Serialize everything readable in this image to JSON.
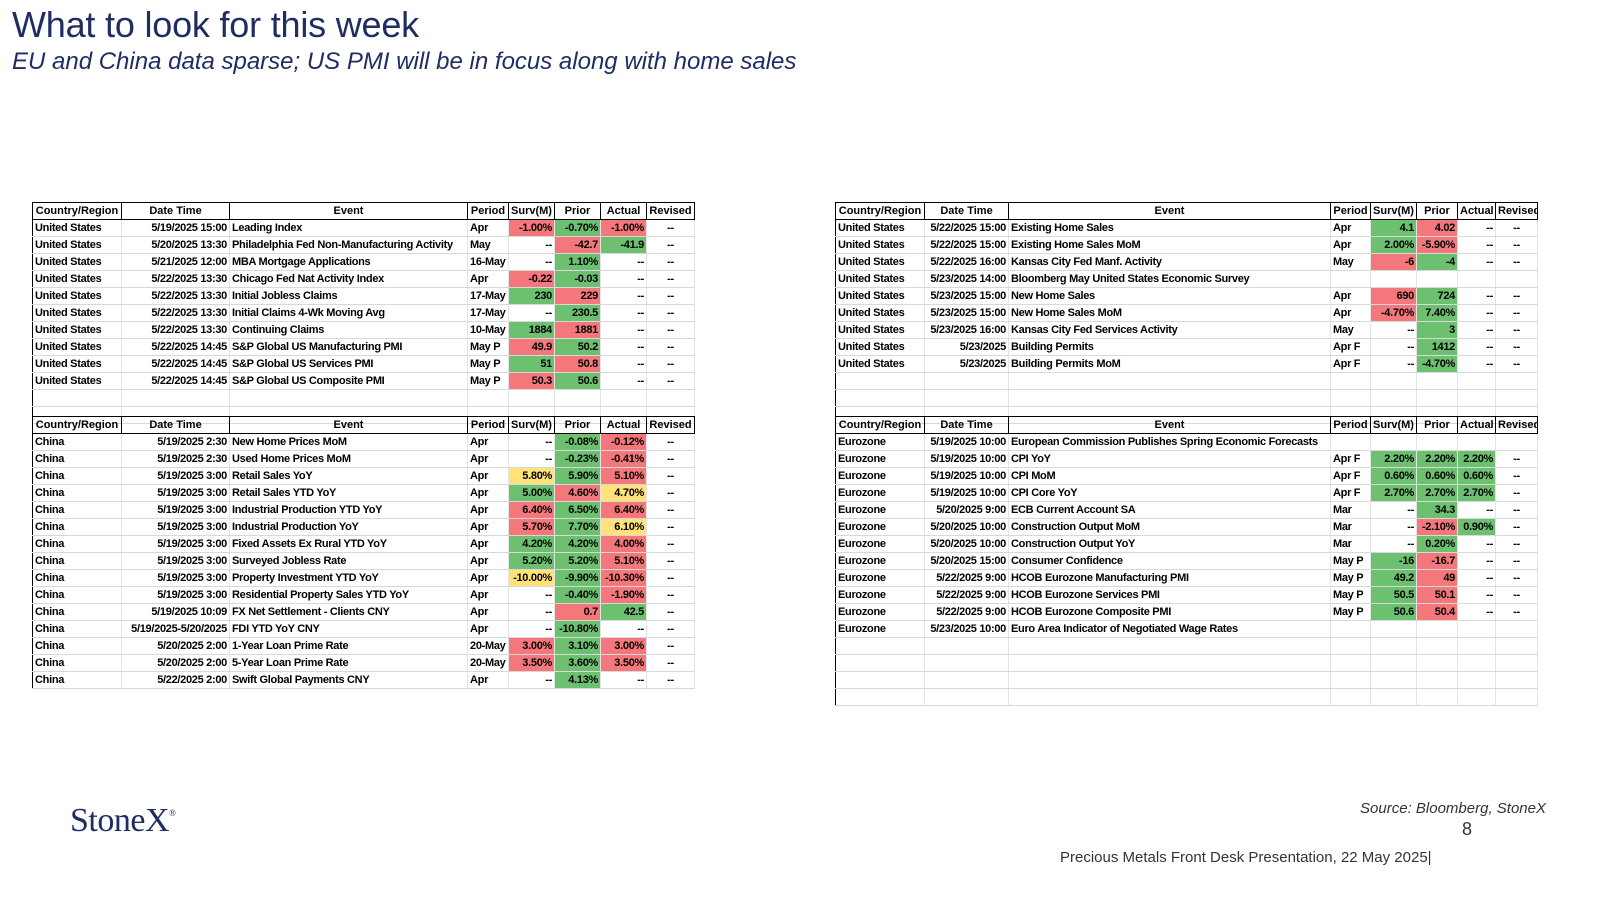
{
  "title": "What to look for this week",
  "subtitle": "EU and China data sparse; US PMI will be in focus along with home sales",
  "headers": [
    "Country/Region",
    "Date Time",
    "Event",
    "Period",
    "Surv(M)",
    "Prior",
    "Actual",
    "Revised"
  ],
  "tables": [
    {
      "rows": [
        [
          "United States",
          "5/19/2025 15:00",
          "Leading Index",
          "Apr",
          "-1.00%",
          "-0.70%",
          "-1.00%",
          "--"
        ],
        [
          "United States",
          "5/20/2025 13:30",
          "Philadelphia Fed Non-Manufacturing Activity",
          "May",
          "--",
          "-42.7",
          "-41.9",
          "--"
        ],
        [
          "United States",
          "5/21/2025 12:00",
          "MBA Mortgage Applications",
          "16-May",
          "--",
          "1.10%",
          "--",
          "--"
        ],
        [
          "United States",
          "5/22/2025 13:30",
          "Chicago Fed Nat Activity Index",
          "Apr",
          "-0.22",
          "-0.03",
          "--",
          "--"
        ],
        [
          "United States",
          "5/22/2025 13:30",
          "Initial Jobless Claims",
          "17-May",
          "230",
          "229",
          "--",
          "--"
        ],
        [
          "United States",
          "5/22/2025 13:30",
          "Initial Claims 4-Wk Moving Avg",
          "17-May",
          "--",
          "230.5",
          "--",
          "--"
        ],
        [
          "United States",
          "5/22/2025 13:30",
          "Continuing Claims",
          "10-May",
          "1884",
          "1881",
          "--",
          "--"
        ],
        [
          "United States",
          "5/22/2025 14:45",
          "S&P Global US Manufacturing PMI",
          "May P",
          "49.9",
          "50.2",
          "--",
          "--"
        ],
        [
          "United States",
          "5/22/2025 14:45",
          "S&P Global US Services PMI",
          "May P",
          "51",
          "50.8",
          "--",
          "--"
        ],
        [
          "United States",
          "5/22/2025 14:45",
          "S&P Global US Composite PMI",
          "May P",
          "50.3",
          "50.6",
          "--",
          "--"
        ]
      ],
      "colors": [
        [
          "",
          "",
          "",
          "",
          "r",
          "g",
          "r",
          ""
        ],
        [
          "",
          "",
          "",
          "",
          "",
          "r",
          "g",
          ""
        ],
        [
          "",
          "",
          "",
          "",
          "",
          "g",
          "",
          ""
        ],
        [
          "",
          "",
          "",
          "",
          "r",
          "g",
          "",
          ""
        ],
        [
          "",
          "",
          "",
          "",
          "g",
          "r",
          "",
          ""
        ],
        [
          "",
          "",
          "",
          "",
          "",
          "g",
          "",
          ""
        ],
        [
          "",
          "",
          "",
          "",
          "g",
          "r",
          "",
          ""
        ],
        [
          "",
          "",
          "",
          "",
          "r",
          "g",
          "",
          ""
        ],
        [
          "",
          "",
          "",
          "",
          "g",
          "r",
          "",
          ""
        ],
        [
          "",
          "",
          "",
          "",
          "r",
          "g",
          "",
          ""
        ]
      ]
    },
    {
      "rows": [
        [
          "United States",
          "5/22/2025 15:00",
          "Existing Home Sales",
          "Apr",
          "4.1",
          "4.02",
          "--",
          "--"
        ],
        [
          "United States",
          "5/22/2025 15:00",
          "Existing Home Sales MoM",
          "Apr",
          "2.00%",
          "-5.90%",
          "--",
          "--"
        ],
        [
          "United States",
          "5/22/2025 16:00",
          "Kansas City Fed Manf. Activity",
          "May",
          "-6",
          "-4",
          "--",
          "--"
        ],
        [
          "United States",
          "5/23/2025 14:00",
          "Bloomberg May United States Economic Survey",
          "",
          "",
          "",
          "",
          ""
        ],
        [
          "United States",
          "5/23/2025 15:00",
          "New Home Sales",
          "Apr",
          "690",
          "724",
          "--",
          "--"
        ],
        [
          "United States",
          "5/23/2025 15:00",
          "New Home Sales MoM",
          "Apr",
          "-4.70%",
          "7.40%",
          "--",
          "--"
        ],
        [
          "United States",
          "5/23/2025 16:00",
          "Kansas City Fed Services Activity",
          "May",
          "--",
          "3",
          "--",
          "--"
        ],
        [
          "United States",
          "5/23/2025",
          "Building Permits",
          "Apr F",
          "--",
          "1412",
          "--",
          "--"
        ],
        [
          "United States",
          "5/23/2025",
          "Building Permits MoM",
          "Apr F",
          "--",
          "-4.70%",
          "--",
          "--"
        ]
      ],
      "colors": [
        [
          "",
          "",
          "",
          "",
          "g",
          "r",
          "",
          ""
        ],
        [
          "",
          "",
          "",
          "",
          "g",
          "r",
          "",
          ""
        ],
        [
          "",
          "",
          "",
          "",
          "r",
          "g",
          "",
          ""
        ],
        [
          "",
          "",
          "",
          "",
          "",
          "",
          "",
          ""
        ],
        [
          "",
          "",
          "",
          "",
          "r",
          "g",
          "",
          ""
        ],
        [
          "",
          "",
          "",
          "",
          "r",
          "g",
          "",
          ""
        ],
        [
          "",
          "",
          "",
          "",
          "",
          "g",
          "",
          ""
        ],
        [
          "",
          "",
          "",
          "",
          "",
          "g",
          "",
          ""
        ],
        [
          "",
          "",
          "",
          "",
          "",
          "g",
          "",
          ""
        ]
      ]
    },
    {
      "rows": [
        [
          "China",
          "5/19/2025 2:30",
          "New Home Prices MoM",
          "Apr",
          "--",
          "-0.08%",
          "-0.12%",
          "--"
        ],
        [
          "China",
          "5/19/2025 2:30",
          "Used Home Prices MoM",
          "Apr",
          "--",
          "-0.23%",
          "-0.41%",
          "--"
        ],
        [
          "China",
          "5/19/2025 3:00",
          "Retail Sales YoY",
          "Apr",
          "5.80%",
          "5.90%",
          "5.10%",
          "--"
        ],
        [
          "China",
          "5/19/2025 3:00",
          "Retail Sales YTD YoY",
          "Apr",
          "5.00%",
          "4.60%",
          "4.70%",
          "--"
        ],
        [
          "China",
          "5/19/2025 3:00",
          "Industrial Production YTD YoY",
          "Apr",
          "6.40%",
          "6.50%",
          "6.40%",
          "--"
        ],
        [
          "China",
          "5/19/2025 3:00",
          "Industrial Production YoY",
          "Apr",
          "5.70%",
          "7.70%",
          "6.10%",
          "--"
        ],
        [
          "China",
          "5/19/2025 3:00",
          "Fixed Assets Ex Rural YTD YoY",
          "Apr",
          "4.20%",
          "4.20%",
          "4.00%",
          "--"
        ],
        [
          "China",
          "5/19/2025 3:00",
          "Surveyed Jobless Rate",
          "Apr",
          "5.20%",
          "5.20%",
          "5.10%",
          "--"
        ],
        [
          "China",
          "5/19/2025 3:00",
          "Property Investment YTD YoY",
          "Apr",
          "-10.00%",
          "-9.90%",
          "-10.30%",
          "--"
        ],
        [
          "China",
          "5/19/2025 3:00",
          "Residential Property Sales YTD YoY",
          "Apr",
          "--",
          "-0.40%",
          "-1.90%",
          "--"
        ],
        [
          "China",
          "5/19/2025 10:09",
          "FX Net Settlement - Clients CNY",
          "Apr",
          "--",
          "0.7",
          "42.5",
          "--"
        ],
        [
          "China",
          "5/19/2025-5/20/2025",
          "FDI YTD YoY CNY",
          "Apr",
          "--",
          "-10.80%",
          "--",
          "--"
        ],
        [
          "China",
          "5/20/2025 2:00",
          "1-Year Loan Prime Rate",
          "20-May",
          "3.00%",
          "3.10%",
          "3.00%",
          "--"
        ],
        [
          "China",
          "5/20/2025 2:00",
          "5-Year Loan Prime Rate",
          "20-May",
          "3.50%",
          "3.60%",
          "3.50%",
          "--"
        ],
        [
          "China",
          "5/22/2025 2:00",
          "Swift Global Payments CNY",
          "Apr",
          "--",
          "4.13%",
          "--",
          "--"
        ]
      ],
      "colors": [
        [
          "",
          "",
          "",
          "",
          "",
          "g",
          "r",
          ""
        ],
        [
          "",
          "",
          "",
          "",
          "",
          "g",
          "r",
          ""
        ],
        [
          "",
          "",
          "",
          "",
          "y",
          "g",
          "r",
          ""
        ],
        [
          "",
          "",
          "",
          "",
          "g",
          "r",
          "y",
          ""
        ],
        [
          "",
          "",
          "",
          "",
          "r",
          "g",
          "r",
          ""
        ],
        [
          "",
          "",
          "",
          "",
          "r",
          "g",
          "y",
          ""
        ],
        [
          "",
          "",
          "",
          "",
          "g",
          "g",
          "r",
          ""
        ],
        [
          "",
          "",
          "",
          "",
          "g",
          "g",
          "r",
          ""
        ],
        [
          "",
          "",
          "",
          "",
          "y",
          "g",
          "r",
          ""
        ],
        [
          "",
          "",
          "",
          "",
          "",
          "g",
          "r",
          ""
        ],
        [
          "",
          "",
          "",
          "",
          "",
          "r",
          "g",
          ""
        ],
        [
          "",
          "",
          "",
          "",
          "",
          "g",
          "",
          ""
        ],
        [
          "",
          "",
          "",
          "",
          "r",
          "g",
          "r",
          ""
        ],
        [
          "",
          "",
          "",
          "",
          "r",
          "g",
          "r",
          ""
        ],
        [
          "",
          "",
          "",
          "",
          "",
          "g",
          "",
          ""
        ]
      ]
    },
    {
      "rows": [
        [
          "Eurozone",
          "5/19/2025 10:00",
          "European Commission Publishes Spring Economic Forecasts",
          "",
          "",
          "",
          "",
          ""
        ],
        [
          "Eurozone",
          "5/19/2025 10:00",
          "CPI YoY",
          "Apr F",
          "2.20%",
          "2.20%",
          "2.20%",
          "--"
        ],
        [
          "Eurozone",
          "5/19/2025 10:00",
          "CPI MoM",
          "Apr F",
          "0.60%",
          "0.60%",
          "0.60%",
          "--"
        ],
        [
          "Eurozone",
          "5/19/2025 10:00",
          "CPI Core YoY",
          "Apr F",
          "2.70%",
          "2.70%",
          "2.70%",
          "--"
        ],
        [
          "Eurozone",
          "5/20/2025 9:00",
          "ECB Current Account SA",
          "Mar",
          "--",
          "34.3",
          "--",
          "--"
        ],
        [
          "Eurozone",
          "5/20/2025 10:00",
          "Construction Output MoM",
          "Mar",
          "--",
          "-2.10%",
          "0.90%",
          "--"
        ],
        [
          "Eurozone",
          "5/20/2025 10:00",
          "Construction Output YoY",
          "Mar",
          "--",
          "0.20%",
          "--",
          "--"
        ],
        [
          "Eurozone",
          "5/20/2025 15:00",
          "Consumer Confidence",
          "May P",
          "-16",
          "-16.7",
          "--",
          "--"
        ],
        [
          "Eurozone",
          "5/22/2025 9:00",
          "HCOB Eurozone Manufacturing PMI",
          "May P",
          "49.2",
          "49",
          "--",
          "--"
        ],
        [
          "Eurozone",
          "5/22/2025 9:00",
          "HCOB Eurozone Services PMI",
          "May P",
          "50.5",
          "50.1",
          "--",
          "--"
        ],
        [
          "Eurozone",
          "5/22/2025 9:00",
          "HCOB Eurozone Composite PMI",
          "May P",
          "50.6",
          "50.4",
          "--",
          "--"
        ],
        [
          "Eurozone",
          "5/23/2025 10:00",
          "Euro Area Indicator of Negotiated Wage Rates",
          "",
          "",
          "",
          "",
          ""
        ]
      ],
      "colors": [
        [
          "",
          "",
          "",
          "",
          "",
          "",
          "",
          ""
        ],
        [
          "",
          "",
          "",
          "",
          "g",
          "g",
          "g",
          ""
        ],
        [
          "",
          "",
          "",
          "",
          "g",
          "g",
          "g",
          ""
        ],
        [
          "",
          "",
          "",
          "",
          "g",
          "g",
          "g",
          ""
        ],
        [
          "",
          "",
          "",
          "",
          "",
          "g",
          "",
          ""
        ],
        [
          "",
          "",
          "",
          "",
          "",
          "r",
          "g",
          ""
        ],
        [
          "",
          "",
          "",
          "",
          "",
          "g",
          "",
          ""
        ],
        [
          "",
          "",
          "",
          "",
          "g",
          "r",
          "",
          ""
        ],
        [
          "",
          "",
          "",
          "",
          "g",
          "r",
          "",
          ""
        ],
        [
          "",
          "",
          "",
          "",
          "g",
          "r",
          "",
          ""
        ],
        [
          "",
          "",
          "",
          "",
          "g",
          "r",
          "",
          ""
        ],
        [
          "",
          "",
          "",
          "",
          "",
          "",
          "",
          ""
        ]
      ]
    }
  ],
  "logo": "StoneX",
  "logo_mark": "®",
  "source": "Source: Bloomberg, StoneX",
  "page_number": "8",
  "footer": "Precious Metals Front Desk Presentation, 22 May 2025|",
  "colors": {
    "title": "#1f2d63",
    "red": "#f4787b",
    "green": "#6cc070",
    "yellow": "#ffe27a"
  }
}
